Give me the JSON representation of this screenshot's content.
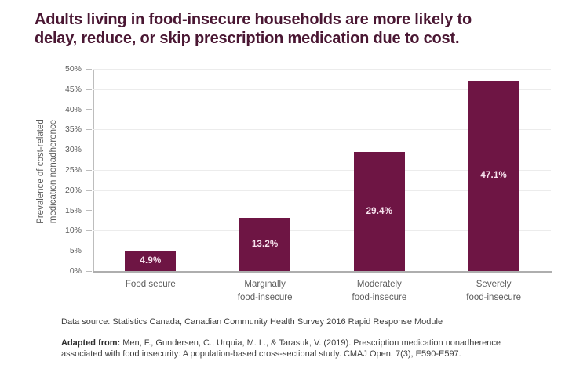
{
  "title": "Adults living in food-insecure households are more likely to\ndelay, reduce, or skip prescription medication due to cost.",
  "chart_data": {
    "type": "bar",
    "categories": [
      "Food secure",
      "Marginally\nfood-insecure",
      "Moderately\nfood-insecure",
      "Severely\nfood-insecure"
    ],
    "values": [
      4.9,
      13.2,
      29.4,
      47.1
    ],
    "value_labels": [
      "4.9%",
      "13.2%",
      "29.4%",
      "47.1%"
    ],
    "title": "Adults living in food-insecure households are more likely to delay, reduce, or skip prescription medication due to cost.",
    "xlabel": "",
    "ylabel": "Prevalence of cost-related\nmedication nonadherence",
    "ylim": [
      0,
      50
    ],
    "ytick_step": 5,
    "ytick_suffix": "%",
    "grid": true,
    "legend": "none",
    "bar_color": "#6e1544",
    "bar_label_color": "#f7e3ee",
    "title_color": "#4a1733"
  },
  "footer": {
    "source": "Data source: Statistics Canada, Canadian Community Health Survey 2016 Rapid Response Module",
    "adapted_prefix": "Adapted from:",
    "adapted_text": " Men, F., Gundersen, C., Urquia, M. L., & Tarasuk, V. (2019). Prescription medication nonadherence associated with food insecurity: A population-based cross-sectional study. CMAJ Open, 7(3), E590-E597."
  }
}
